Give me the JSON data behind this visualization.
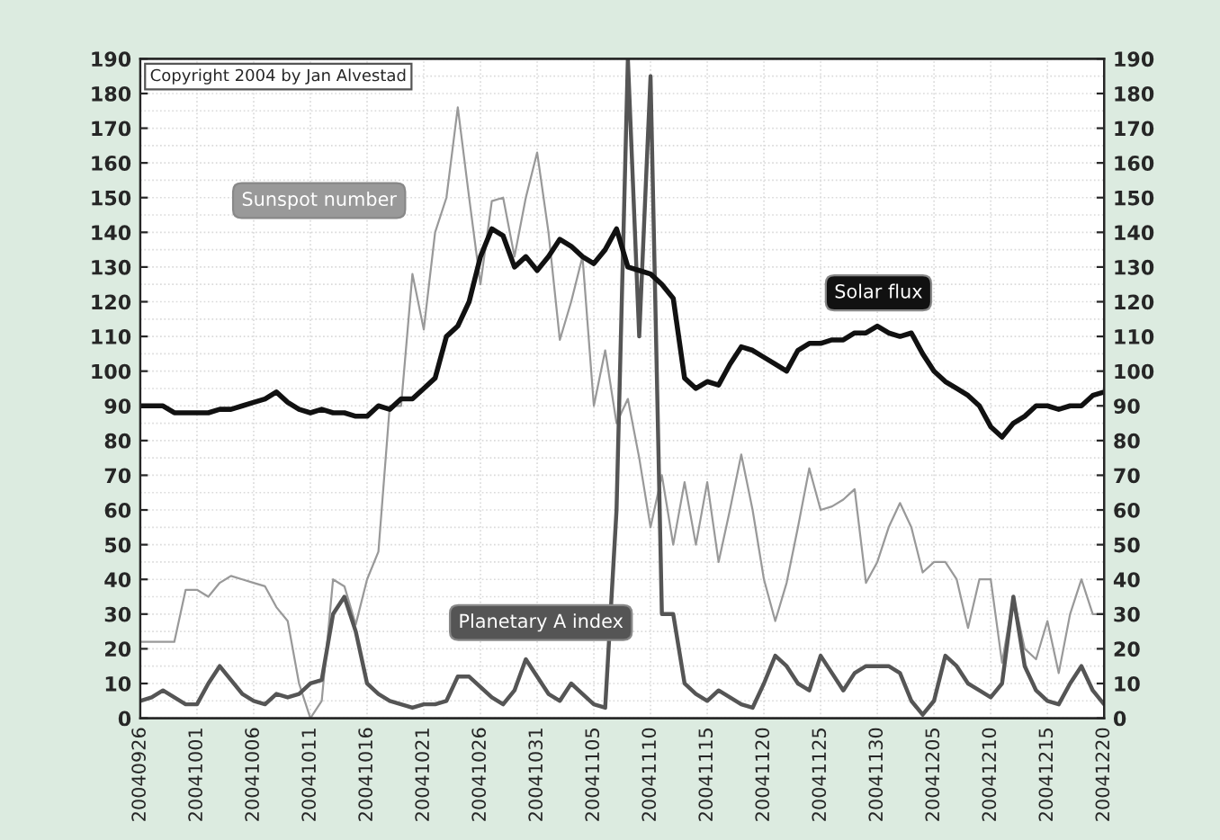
{
  "chart_data": {
    "type": "line",
    "x": [
      "2004-09-26",
      "2004-09-27",
      "2004-09-28",
      "2004-09-29",
      "2004-09-30",
      "2004-10-01",
      "2004-10-02",
      "2004-10-03",
      "2004-10-04",
      "2004-10-05",
      "2004-10-06",
      "2004-10-07",
      "2004-10-08",
      "2004-10-09",
      "2004-10-10",
      "2004-10-11",
      "2004-10-12",
      "2004-10-13",
      "2004-10-14",
      "2004-10-15",
      "2004-10-16",
      "2004-10-17",
      "2004-10-18",
      "2004-10-19",
      "2004-10-20",
      "2004-10-21",
      "2004-10-22",
      "2004-10-23",
      "2004-10-24",
      "2004-10-25",
      "2004-10-26",
      "2004-10-27",
      "2004-10-28",
      "2004-10-29",
      "2004-10-30",
      "2004-10-31",
      "2004-11-01",
      "2004-11-02",
      "2004-11-03",
      "2004-11-04",
      "2004-11-05",
      "2004-11-06",
      "2004-11-07",
      "2004-11-08",
      "2004-11-09",
      "2004-11-10",
      "2004-11-11",
      "2004-11-12",
      "2004-11-13",
      "2004-11-14",
      "2004-11-15",
      "2004-11-16",
      "2004-11-17",
      "2004-11-18",
      "2004-11-19",
      "2004-11-20",
      "2004-11-21",
      "2004-11-22",
      "2004-11-23",
      "2004-11-24",
      "2004-11-25",
      "2004-11-26",
      "2004-11-27",
      "2004-11-28",
      "2004-11-29",
      "2004-11-30",
      "2004-12-01",
      "2004-12-02",
      "2004-12-03",
      "2004-12-04",
      "2004-12-05",
      "2004-12-06",
      "2004-12-07",
      "2004-12-08",
      "2004-12-09",
      "2004-12-10",
      "2004-12-11",
      "2004-12-12",
      "2004-12-13",
      "2004-12-14",
      "2004-12-15",
      "2004-12-16",
      "2004-12-17",
      "2004-12-18",
      "2004-12-19",
      "2004-12-20"
    ],
    "series": [
      {
        "name": "Sunspot number",
        "color": "#999999",
        "values": [
          22,
          22,
          22,
          22,
          37,
          37,
          35,
          39,
          41,
          40,
          39,
          38,
          32,
          28,
          10,
          0,
          5,
          40,
          38,
          27,
          40,
          48,
          90,
          90,
          128,
          112,
          140,
          150,
          176,
          150,
          125,
          149,
          150,
          133,
          150,
          163,
          140,
          109,
          120,
          133,
          90,
          106,
          85,
          92,
          75,
          55,
          70,
          50,
          68,
          50,
          68,
          45,
          60,
          76,
          60,
          40,
          28,
          39,
          55,
          72,
          60,
          61,
          63,
          66,
          39,
          45,
          55,
          62,
          55,
          42,
          45,
          45,
          40,
          26,
          40,
          40,
          16,
          35,
          20,
          17,
          28,
          13,
          30,
          40,
          30,
          30
        ]
      },
      {
        "name": "Planetary A index",
        "color": "#555555",
        "values": [
          5,
          6,
          8,
          6,
          4,
          4,
          10,
          15,
          11,
          7,
          5,
          4,
          7,
          6,
          7,
          10,
          11,
          30,
          35,
          25,
          10,
          7,
          5,
          4,
          3,
          4,
          4,
          5,
          12,
          12,
          9,
          6,
          4,
          8,
          17,
          12,
          7,
          5,
          10,
          7,
          4,
          3,
          60,
          190,
          110,
          185,
          30,
          30,
          10,
          7,
          5,
          8,
          6,
          4,
          3,
          10,
          18,
          15,
          10,
          8,
          18,
          13,
          8,
          13,
          15,
          15,
          15,
          13,
          5,
          1,
          5,
          18,
          15,
          10,
          8,
          6,
          10,
          35,
          15,
          8,
          5,
          4,
          10,
          15,
          8,
          4
        ]
      },
      {
        "name": "Solar flux",
        "color": "#111111",
        "values": [
          90,
          90,
          90,
          88,
          88,
          88,
          88,
          89,
          89,
          90,
          91,
          92,
          94,
          91,
          89,
          88,
          89,
          88,
          88,
          87,
          87,
          90,
          89,
          92,
          92,
          95,
          98,
          110,
          113,
          120,
          133,
          141,
          139,
          130,
          133,
          129,
          133,
          138,
          136,
          133,
          131,
          135,
          141,
          130,
          129,
          128,
          125,
          121,
          98,
          95,
          97,
          96,
          102,
          107,
          106,
          104,
          102,
          100,
          106,
          108,
          108,
          109,
          109,
          111,
          111,
          113,
          111,
          110,
          111,
          105,
          100,
          97,
          95,
          93,
          90,
          84,
          81,
          85,
          87,
          90,
          90,
          89,
          90,
          90,
          93,
          94
        ]
      }
    ],
    "xlim": [
      "2004-09-26",
      "2004-12-20"
    ],
    "xticks": [
      {
        "value": "2004-09-26",
        "label": "20040926"
      },
      {
        "value": "2004-10-01",
        "label": "20041001"
      },
      {
        "value": "2004-10-06",
        "label": "20041006"
      },
      {
        "value": "2004-10-11",
        "label": "20041011"
      },
      {
        "value": "2004-10-16",
        "label": "20041016"
      },
      {
        "value": "2004-10-21",
        "label": "20041021"
      },
      {
        "value": "2004-10-26",
        "label": "20041026"
      },
      {
        "value": "2004-10-31",
        "label": "20041031"
      },
      {
        "value": "2004-11-05",
        "label": "20041105"
      },
      {
        "value": "2004-11-10",
        "label": "20041110"
      },
      {
        "value": "2004-11-15",
        "label": "20041115"
      },
      {
        "value": "2004-11-20",
        "label": "20041120"
      },
      {
        "value": "2004-11-25",
        "label": "20041125"
      },
      {
        "value": "2004-11-30",
        "label": "20041130"
      },
      {
        "value": "2004-12-05",
        "label": "20041205"
      },
      {
        "value": "2004-12-10",
        "label": "20041210"
      },
      {
        "value": "2004-12-15",
        "label": "20041215"
      },
      {
        "value": "2004-12-20",
        "label": "20041220"
      }
    ],
    "ylim": [
      0,
      190
    ],
    "yticks": [
      0,
      10,
      20,
      30,
      40,
      50,
      60,
      70,
      80,
      90,
      100,
      110,
      120,
      130,
      140,
      150,
      160,
      170,
      180,
      190
    ],
    "y2lim": [
      0,
      190
    ],
    "y2ticks": [
      0,
      10,
      20,
      30,
      40,
      50,
      60,
      70,
      80,
      90,
      100,
      110,
      120,
      130,
      140,
      150,
      160,
      170,
      180,
      190
    ],
    "grid": true,
    "legend": false,
    "marker": "none",
    "line_style": "solid",
    "annotations": [
      "Copyright 2004 by Jan Alvestad"
    ]
  }
}
